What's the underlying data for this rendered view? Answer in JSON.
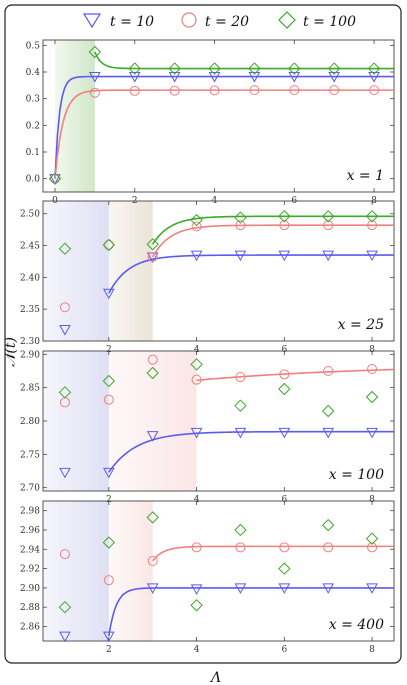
{
  "legend": [
    {
      "label": "t = 10",
      "color": "#5b5bf0",
      "marker": "triangle-down"
    },
    {
      "label": "t = 20",
      "color": "#f08080",
      "marker": "circle"
    },
    {
      "label": "t = 100",
      "color": "#3caa28",
      "marker": "diamond"
    }
  ],
  "axes": {
    "xlabel": "Λ",
    "ylabel": "𝒩(t)"
  },
  "chart_data": [
    {
      "type": "scatter",
      "panel_label": "x = 1",
      "xlim": [
        -0.3,
        8.5
      ],
      "ylim": [
        -0.05,
        0.52
      ],
      "xticks": [
        0,
        2,
        4,
        6,
        8
      ],
      "yticks": [
        0.0,
        0.1,
        0.2,
        0.3,
        0.4,
        0.5
      ],
      "ytick_format": 1,
      "shades": [
        {
          "from": 0,
          "to": 1,
          "color": "#5aa83c"
        }
      ],
      "series": [
        {
          "name": "t = 10",
          "x": [
            0,
            1,
            2,
            3,
            4,
            5,
            6,
            7,
            8
          ],
          "y": [
            0.0,
            0.383,
            0.383,
            0.383,
            0.383,
            0.383,
            0.383,
            0.383,
            0.383
          ],
          "fit": {
            "start": 0,
            "y0": 0.0,
            "plateau": 0.383,
            "rate": 9
          }
        },
        {
          "name": "t = 20",
          "x": [
            0,
            1,
            2,
            3,
            4,
            5,
            6,
            7,
            8
          ],
          "y": [
            0.0,
            0.322,
            0.329,
            0.33,
            0.331,
            0.332,
            0.332,
            0.332,
            0.332
          ],
          "fit": {
            "start": 0,
            "y0": 0.0,
            "plateau": 0.332,
            "rate": 5
          }
        },
        {
          "name": "t = 100",
          "x": [
            0,
            1,
            2,
            3,
            4,
            5,
            6,
            7,
            8
          ],
          "y": [
            0.0,
            0.475,
            0.413,
            0.413,
            0.413,
            0.413,
            0.413,
            0.413,
            0.413
          ],
          "fit": {
            "start": 1,
            "y0": 0.475,
            "plateau": 0.413,
            "rate": 6
          }
        }
      ]
    },
    {
      "type": "scatter",
      "panel_label": "x = 25",
      "xlim": [
        0.5,
        8.5
      ],
      "ylim": [
        2.3,
        2.52
      ],
      "xticks": [
        2,
        4,
        6,
        8
      ],
      "yticks": [
        2.3,
        2.35,
        2.4,
        2.45,
        2.5
      ],
      "ytick_format": 2,
      "shades": [
        {
          "from": 0.5,
          "to": 2,
          "color": "#8f8fd8"
        },
        {
          "from": 2,
          "to": 3,
          "color": "#b89a70"
        }
      ],
      "series": [
        {
          "name": "t = 10",
          "x": [
            1,
            2,
            3,
            4,
            5,
            6,
            7,
            8
          ],
          "y": [
            2.318,
            2.375,
            2.432,
            2.435,
            2.435,
            2.435,
            2.435,
            2.435
          ],
          "fit": {
            "start": 2,
            "y0": 2.375,
            "plateau": 2.435,
            "rate": 2.2
          }
        },
        {
          "name": "t = 20",
          "x": [
            1,
            2,
            3,
            4,
            5,
            6,
            7,
            8
          ],
          "y": [
            2.353,
            2.451,
            2.432,
            2.48,
            2.482,
            2.482,
            2.482,
            2.482
          ],
          "fit": {
            "start": 3,
            "y0": 2.432,
            "plateau": 2.482,
            "rate": 2.5
          }
        },
        {
          "name": "t = 100",
          "x": [
            1,
            2,
            3,
            4,
            5,
            6,
            7,
            8
          ],
          "y": [
            2.445,
            2.451,
            2.452,
            2.49,
            2.494,
            2.496,
            2.496,
            2.496
          ],
          "fit": {
            "start": 3,
            "y0": 2.452,
            "plateau": 2.496,
            "rate": 2.5
          }
        }
      ]
    },
    {
      "type": "scatter",
      "panel_label": "x = 100",
      "xlim": [
        0.5,
        8.5
      ],
      "ylim": [
        2.695,
        2.905
      ],
      "xticks": [
        2,
        4,
        6,
        8
      ],
      "yticks": [
        2.7,
        2.75,
        2.8,
        2.85,
        2.9
      ],
      "ytick_format": 2,
      "shades": [
        {
          "from": 0.5,
          "to": 2,
          "color": "#8f8fd8"
        },
        {
          "from": 2,
          "to": 4,
          "color": "#f0a8a8"
        }
      ],
      "series": [
        {
          "name": "t = 10",
          "x": [
            1,
            2,
            3,
            4,
            5,
            6,
            7,
            8
          ],
          "y": [
            2.723,
            2.723,
            2.778,
            2.783,
            2.783,
            2.783,
            2.783,
            2.783
          ],
          "fit": {
            "start": 2,
            "y0": 2.723,
            "plateau": 2.784,
            "rate": 1.6
          }
        },
        {
          "name": "t = 20",
          "x": [
            1,
            2,
            3,
            4,
            5,
            6,
            7,
            8
          ],
          "y": [
            2.828,
            2.832,
            2.892,
            2.862,
            2.866,
            2.87,
            2.875,
            2.878
          ],
          "fit": {
            "start": 4,
            "y0": 2.861,
            "plateau": 2.885,
            "rate": 0.25
          }
        },
        {
          "name": "t = 100",
          "x": [
            1,
            2,
            3,
            4,
            5,
            6,
            7,
            8
          ],
          "y": [
            2.843,
            2.86,
            2.872,
            2.885,
            2.823,
            2.848,
            2.815,
            2.836
          ]
        }
      ]
    },
    {
      "type": "scatter",
      "panel_label": "x = 400",
      "xlim": [
        0.5,
        8.5
      ],
      "ylim": [
        2.845,
        2.99
      ],
      "xticks": [
        2,
        4,
        6,
        8
      ],
      "yticks": [
        2.86,
        2.88,
        2.9,
        2.92,
        2.94,
        2.96,
        2.98
      ],
      "ytick_format": 2,
      "shades": [
        {
          "from": 0.5,
          "to": 2,
          "color": "#8f8fd8"
        },
        {
          "from": 2,
          "to": 3,
          "color": "#f0a8a8"
        }
      ],
      "series": [
        {
          "name": "t = 10",
          "x": [
            1,
            2,
            3,
            4,
            5,
            6,
            7,
            8
          ],
          "y": [
            2.85,
            2.85,
            2.9,
            2.899,
            2.9,
            2.9,
            2.9,
            2.9
          ],
          "fit": {
            "start": 2,
            "y0": 2.85,
            "plateau": 2.9,
            "rate": 6
          }
        },
        {
          "name": "t = 20",
          "x": [
            1,
            2,
            3,
            4,
            5,
            6,
            7,
            8
          ],
          "y": [
            2.935,
            2.908,
            2.928,
            2.942,
            2.942,
            2.942,
            2.942,
            2.942
          ],
          "fit": {
            "start": 3,
            "y0": 2.928,
            "plateau": 2.943,
            "rate": 4
          }
        },
        {
          "name": "t = 100",
          "x": [
            1,
            2,
            3,
            4,
            5,
            6,
            7,
            8
          ],
          "y": [
            2.88,
            2.947,
            2.973,
            2.882,
            2.96,
            2.92,
            2.965,
            2.951
          ]
        }
      ]
    }
  ]
}
